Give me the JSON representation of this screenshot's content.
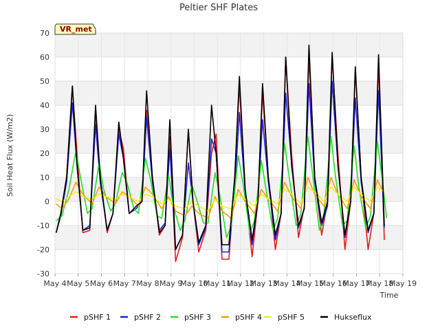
{
  "chart_data": {
    "type": "line",
    "title": "Peltier SHF Plates",
    "xlabel": "Time",
    "ylabel": "Soil Heat Flux (W/m2)",
    "badge": "VR_met",
    "xlim": [
      4,
      19
    ],
    "ylim": [
      -30,
      70
    ],
    "y_ticks": [
      -30,
      -20,
      -10,
      0,
      10,
      20,
      30,
      40,
      50,
      60,
      70
    ],
    "x_ticks": [
      {
        "value": 4,
        "label": "May 4"
      },
      {
        "value": 5,
        "label": "May 5"
      },
      {
        "value": 6,
        "label": "May 6"
      },
      {
        "value": 7,
        "label": "May 7"
      },
      {
        "value": 8,
        "label": "May 8"
      },
      {
        "value": 9,
        "label": "May 9"
      },
      {
        "value": 10,
        "label": "May 10"
      },
      {
        "value": 11,
        "label": "May 11"
      },
      {
        "value": 12,
        "label": "May 12"
      },
      {
        "value": 13,
        "label": "May 13"
      },
      {
        "value": 14,
        "label": "May 14"
      },
      {
        "value": 15,
        "label": "May 15"
      },
      {
        "value": 16,
        "label": "May 16"
      },
      {
        "value": 17,
        "label": "May 17"
      },
      {
        "value": 18,
        "label": "May 18"
      },
      {
        "value": 19,
        "label": "May 19"
      }
    ],
    "grid": true,
    "legend_position": "bottom",
    "series": [
      {
        "name": "pSHF 1",
        "color": "#e8191c",
        "x": [
          4.05,
          4.25,
          4.5,
          4.75,
          4.95,
          5.2,
          5.5,
          5.75,
          5.95,
          6.25,
          6.5,
          6.75,
          6.95,
          7.2,
          7.5,
          7.75,
          7.95,
          8.2,
          8.5,
          8.75,
          8.95,
          9.2,
          9.5,
          9.75,
          9.95,
          10.2,
          10.5,
          10.75,
          10.95,
          11.2,
          11.5,
          11.75,
          11.95,
          12.2,
          12.5,
          12.75,
          12.95,
          13.2,
          13.5,
          13.75,
          13.95,
          14.2,
          14.5,
          14.75,
          14.95,
          15.2,
          15.5,
          15.75,
          15.95,
          16.2,
          16.5,
          16.75,
          16.95,
          17.2,
          17.5,
          17.75,
          17.95,
          18.2
        ],
        "y": [
          -13,
          -5,
          10,
          48,
          20,
          -13,
          -12,
          37,
          10,
          -13,
          -5,
          30,
          22,
          -5,
          -3,
          0,
          38,
          10,
          -14,
          -10,
          27,
          -25,
          -15,
          30,
          0,
          -21,
          -12,
          20,
          28,
          -24,
          -24,
          10,
          48,
          5,
          -23,
          0,
          45,
          10,
          -20,
          -5,
          60,
          20,
          -15,
          -2,
          60,
          10,
          -14,
          0,
          60,
          20,
          -20,
          0,
          55,
          10,
          -20,
          -5,
          57,
          -16
        ]
      },
      {
        "name": "pSHF 2",
        "color": "#1f1fd6",
        "x": [
          4.05,
          4.25,
          4.5,
          4.75,
          4.95,
          5.2,
          5.5,
          5.75,
          5.95,
          6.25,
          6.5,
          6.75,
          6.95,
          7.2,
          7.5,
          7.75,
          7.95,
          8.2,
          8.5,
          8.75,
          8.95,
          9.2,
          9.5,
          9.75,
          9.95,
          10.2,
          10.5,
          10.75,
          10.95,
          11.2,
          11.5,
          11.75,
          11.95,
          12.2,
          12.5,
          12.75,
          12.95,
          13.2,
          13.5,
          13.75,
          13.95,
          14.2,
          14.5,
          14.75,
          14.95,
          15.2,
          15.5,
          15.75,
          15.95,
          16.2,
          16.5,
          16.75,
          16.95,
          17.2,
          17.5,
          17.75,
          17.95,
          18.2
        ],
        "y": [
          -13,
          -6,
          8,
          41,
          15,
          -12,
          -10,
          32,
          8,
          -12,
          -5,
          28,
          18,
          -5,
          -3,
          0,
          35,
          8,
          -12,
          -9,
          22,
          -20,
          -14,
          16,
          0,
          -18,
          -11,
          26,
          20,
          -21,
          -21,
          5,
          37,
          4,
          -18,
          0,
          34,
          8,
          -16,
          -5,
          45,
          16,
          -11,
          -3,
          49,
          8,
          -10,
          -2,
          50,
          15,
          -15,
          0,
          43,
          8,
          -13,
          -5,
          46,
          -11
        ]
      },
      {
        "name": "pSHF 3",
        "color": "#22dd22",
        "x": [
          4.05,
          4.3,
          4.6,
          4.9,
          5.1,
          5.4,
          5.6,
          5.9,
          6.1,
          6.4,
          6.6,
          6.9,
          7.1,
          7.4,
          7.6,
          7.9,
          8.1,
          8.4,
          8.6,
          8.9,
          9.1,
          9.4,
          9.6,
          9.9,
          10.1,
          10.4,
          10.6,
          10.9,
          11.1,
          11.4,
          11.6,
          11.9,
          12.1,
          12.4,
          12.6,
          12.9,
          13.1,
          13.4,
          13.6,
          13.9,
          14.1,
          14.4,
          14.6,
          14.9,
          15.1,
          15.4,
          15.6,
          15.9,
          16.1,
          16.4,
          16.6,
          16.9,
          17.1,
          17.4,
          17.6,
          17.9,
          18.1,
          18.3
        ],
        "y": [
          -8,
          -6,
          5,
          21,
          10,
          -5,
          -3,
          16,
          5,
          -4,
          -1,
          12,
          8,
          -3,
          -5,
          18,
          10,
          -6,
          -7,
          11,
          -2,
          -12,
          -8,
          7,
          1,
          -9,
          -9,
          12,
          3,
          -15,
          -10,
          19,
          8,
          -13,
          -8,
          17,
          5,
          -12,
          -7,
          24,
          10,
          -10,
          -5,
          27,
          12,
          -12,
          -5,
          27,
          10,
          -10,
          -8,
          23,
          6,
          -11,
          -6,
          25,
          10,
          -7
        ]
      },
      {
        "name": "pSHF 4",
        "color": "#ff9900",
        "x": [
          4.05,
          4.3,
          4.6,
          4.9,
          5.2,
          5.6,
          5.9,
          6.2,
          6.6,
          6.9,
          7.2,
          7.6,
          7.9,
          8.2,
          8.6,
          8.9,
          9.2,
          9.6,
          9.9,
          10.2,
          10.6,
          10.9,
          11.2,
          11.6,
          11.9,
          12.2,
          12.6,
          12.9,
          13.2,
          13.6,
          13.9,
          14.2,
          14.6,
          14.9,
          15.2,
          15.6,
          15.9,
          16.2,
          16.6,
          16.9,
          17.2,
          17.6,
          17.9,
          18.2
        ],
        "y": [
          -1,
          -3,
          1,
          8,
          3,
          -1,
          6,
          2,
          -1,
          4,
          2,
          -2,
          6,
          3,
          -3,
          2,
          -4,
          -6,
          -2,
          -5,
          -7,
          2,
          -4,
          -7,
          5,
          0,
          -5,
          5,
          1,
          -4,
          8,
          2,
          -3,
          10,
          3,
          -2,
          10,
          3,
          -3,
          9,
          2,
          -3,
          9,
          3
        ]
      },
      {
        "name": "pSHF 5",
        "color": "#f2ee1c",
        "x": [
          4.05,
          4.3,
          4.6,
          4.9,
          5.2,
          5.6,
          5.9,
          6.2,
          6.6,
          6.9,
          7.2,
          7.6,
          7.9,
          8.2,
          8.6,
          8.9,
          9.2,
          9.6,
          9.9,
          10.2,
          10.6,
          10.9,
          11.2,
          11.6,
          11.9,
          12.2,
          12.6,
          12.9,
          13.2,
          13.6,
          13.9,
          14.2,
          14.6,
          14.9,
          15.2,
          15.6,
          15.9,
          16.2,
          16.6,
          16.9,
          17.2,
          17.6,
          17.9,
          18.2
        ],
        "y": [
          1,
          0,
          2,
          4,
          2,
          1,
          3,
          2,
          1,
          3,
          2,
          0,
          3,
          2,
          -1,
          1,
          -2,
          -3,
          0,
          -2,
          -4,
          1,
          -2,
          -3,
          3,
          1,
          -2,
          3,
          1,
          -1,
          5,
          3,
          -1,
          6,
          4,
          0,
          6,
          3,
          0,
          6,
          3,
          0,
          6,
          4
        ]
      },
      {
        "name": "Hukseflux",
        "color": "#000000",
        "x": [
          4.05,
          4.25,
          4.5,
          4.75,
          4.95,
          5.2,
          5.5,
          5.75,
          5.95,
          6.25,
          6.5,
          6.75,
          6.95,
          7.2,
          7.5,
          7.75,
          7.95,
          8.2,
          8.5,
          8.75,
          8.95,
          9.2,
          9.5,
          9.75,
          9.95,
          10.2,
          10.5,
          10.75,
          10.95,
          11.2,
          11.5,
          11.75,
          11.95,
          12.2,
          12.5,
          12.75,
          12.95,
          13.2,
          13.5,
          13.75,
          13.95,
          14.2,
          14.5,
          14.75,
          14.95,
          15.2,
          15.5,
          15.75,
          15.95,
          16.2,
          16.5,
          16.75,
          16.95,
          17.2,
          17.5,
          17.75,
          17.95,
          18.2
        ],
        "y": [
          -13,
          -5,
          10,
          48,
          15,
          -12,
          -11,
          40,
          10,
          -12,
          -5,
          33,
          18,
          -5,
          -2,
          0,
          46,
          10,
          -13,
          -10,
          34,
          -20,
          -14,
          30,
          0,
          -17,
          -10,
          40,
          20,
          -18,
          -18,
          10,
          52,
          5,
          -16,
          0,
          49,
          10,
          -14,
          -5,
          60,
          15,
          -10,
          -3,
          65,
          10,
          -9,
          0,
          62,
          15,
          -14,
          0,
          56,
          10,
          -12,
          -5,
          61,
          -10
        ]
      }
    ]
  }
}
